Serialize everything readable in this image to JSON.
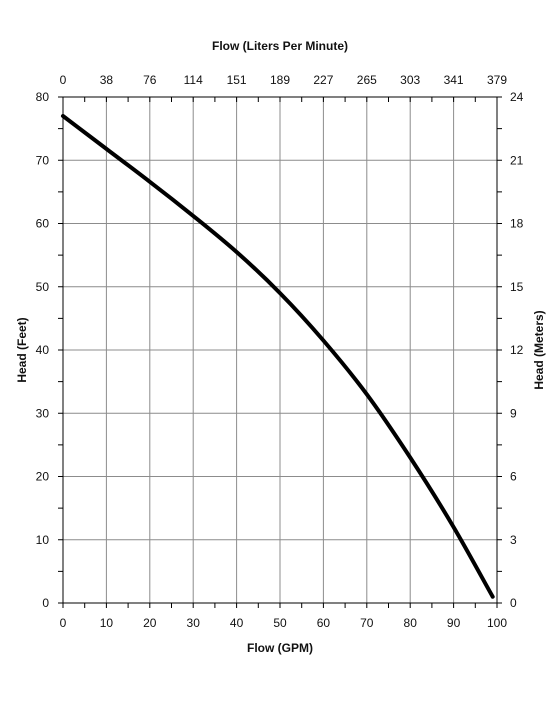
{
  "chart_data": {
    "type": "line",
    "title": "",
    "xlabel": "Flow (GPM)",
    "x2label": "Flow (Liters Per Minute)",
    "ylabel": "Head (Feet)",
    "y2label": "Head (Meters)",
    "xlim": [
      0,
      100
    ],
    "ylim": [
      0,
      80
    ],
    "y2lim": [
      0,
      24
    ],
    "grid": true,
    "x_ticks": [
      "0",
      "10",
      "20",
      "30",
      "40",
      "50",
      "60",
      "70",
      "80",
      "90",
      "100"
    ],
    "x2_ticks": [
      "0",
      "38",
      "76",
      "114",
      "151",
      "189",
      "227",
      "265",
      "303",
      "341",
      "379"
    ],
    "y_ticks": [
      "0",
      "10",
      "20",
      "30",
      "40",
      "50",
      "60",
      "70",
      "80"
    ],
    "y2_ticks": [
      "0",
      "3",
      "6",
      "9",
      "12",
      "15",
      "18",
      "21",
      "24"
    ],
    "series": [
      {
        "color": "#000000",
        "x": [
          0,
          10,
          20,
          30,
          40,
          50,
          60,
          70,
          80,
          90,
          99
        ],
        "y": [
          77,
          71.8,
          66.6,
          61.2,
          55.5,
          49,
          41.5,
          33,
          23,
          12,
          1
        ]
      }
    ]
  }
}
